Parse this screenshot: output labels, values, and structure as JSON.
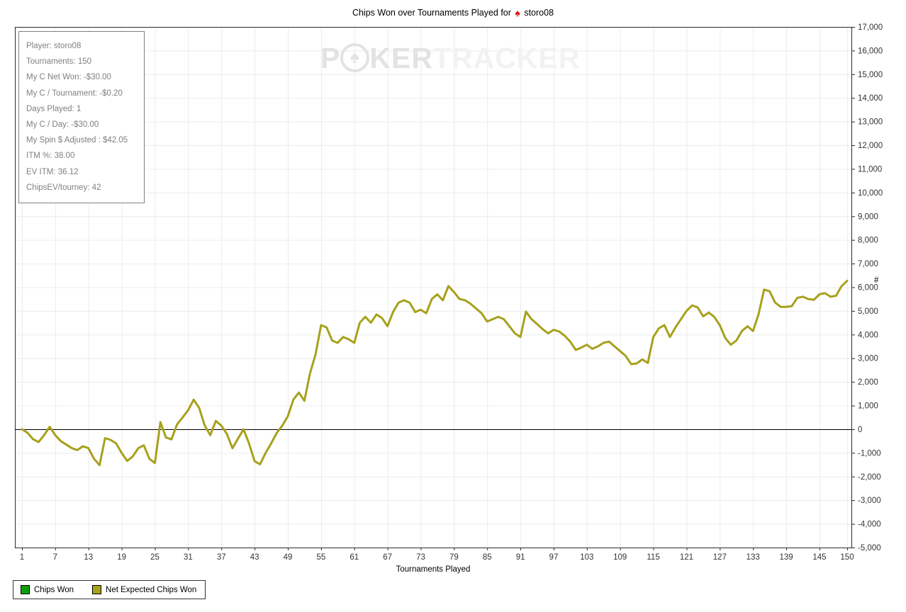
{
  "title": {
    "prefix": "Chips Won over Tournaments Played for",
    "spade_glyph": "♠",
    "player": "storo08"
  },
  "watermark": {
    "part1": "P",
    "part2": "KER",
    "part3": "TRACKER",
    "chip_spade_glyph": "♠"
  },
  "stats_box": {
    "lines": [
      "Player: storo08",
      "Tournaments: 150",
      "My C Net Won: -$30.00",
      "My C / Tournament: -$0.20",
      "Days Played: 1",
      "My C / Day: -$30.00",
      "My Spin $ Adjusted : $42.05",
      "ITM %: 38.00",
      "EV ITM: 36.12",
      "ChipsEV/tourney: 42"
    ]
  },
  "legend": {
    "items": [
      {
        "label": "Chips Won",
        "color": "#0ca00c"
      },
      {
        "label": "Net Expected Chips Won",
        "color": "#a7a11c"
      }
    ]
  },
  "chart_data": {
    "type": "line",
    "title": "Chips Won over Tournaments Played for storo08",
    "xlabel": "Tournaments Played",
    "ylabel": "#",
    "xlim": [
      1,
      150
    ],
    "ylim": [
      -5000,
      17000
    ],
    "y_tick_step": 1000,
    "x_ticks": [
      1,
      7,
      13,
      19,
      25,
      31,
      37,
      43,
      49,
      55,
      61,
      67,
      73,
      79,
      85,
      91,
      97,
      103,
      109,
      115,
      121,
      127,
      133,
      139,
      145,
      150
    ],
    "grid": true,
    "legend_position": "bottom-left",
    "zero_line": true,
    "line_color": "#a7a11c",
    "grid_color": "#ececec",
    "series": [
      {
        "name": "Net Expected Chips Won",
        "x_start": 1,
        "values": [
          0,
          -150,
          -420,
          -540,
          -250,
          100,
          -250,
          -500,
          -650,
          -800,
          -880,
          -720,
          -800,
          -1250,
          -1520,
          -380,
          -450,
          -600,
          -1000,
          -1340,
          -1150,
          -800,
          -680,
          -1250,
          -1430,
          300,
          -350,
          -430,
          200,
          500,
          800,
          1250,
          900,
          150,
          -250,
          350,
          150,
          -200,
          -800,
          -400,
          0,
          -600,
          -1350,
          -1480,
          -1000,
          -600,
          -150,
          150,
          550,
          1250,
          1550,
          1200,
          2350,
          3150,
          4400,
          4300,
          3750,
          3650,
          3900,
          3800,
          3650,
          4500,
          4750,
          4500,
          4850,
          4700,
          4350,
          4950,
          5350,
          5450,
          5350,
          4950,
          5050,
          4900,
          5500,
          5700,
          5450,
          6050,
          5800,
          5500,
          5450,
          5300,
          5100,
          4900,
          4550,
          4650,
          4750,
          4650,
          4350,
          4050,
          3900,
          4970,
          4650,
          4450,
          4230,
          4050,
          4200,
          4130,
          3950,
          3700,
          3350,
          3450,
          3570,
          3400,
          3500,
          3650,
          3700,
          3500,
          3300,
          3100,
          2750,
          2780,
          2950,
          2800,
          3900,
          4260,
          4400,
          3900,
          4300,
          4650,
          5000,
          5230,
          5150,
          4770,
          4930,
          4750,
          4400,
          3850,
          3570,
          3750,
          4150,
          4350,
          4150,
          4850,
          5900,
          5830,
          5350,
          5170,
          5170,
          5200,
          5550,
          5600,
          5500,
          5470,
          5700,
          5750,
          5600,
          5640,
          6050,
          6270
        ]
      }
    ]
  }
}
